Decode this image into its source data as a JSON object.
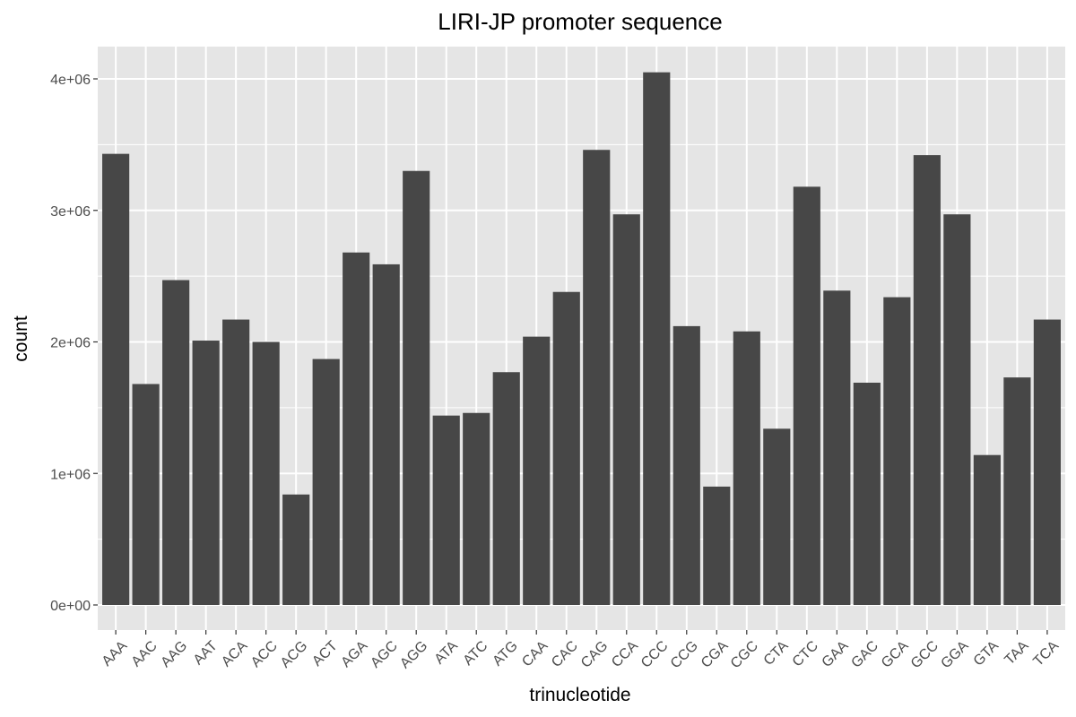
{
  "chart_data": {
    "type": "bar",
    "title": "LIRI-JP promoter sequence",
    "xlabel": "trinucleotide",
    "ylabel": "count",
    "ylim": [
      0,
      4200000
    ],
    "yticks": [
      {
        "value": 0,
        "label": "0e+00"
      },
      {
        "value": 1000000,
        "label": "1e+06"
      },
      {
        "value": 2000000,
        "label": "2e+06"
      },
      {
        "value": 3000000,
        "label": "3e+06"
      },
      {
        "value": 4000000,
        "label": "4e+06"
      }
    ],
    "grid": true,
    "colors": {
      "panel": "#e5e5e5",
      "grid": "#ffffff",
      "bar": "#474747",
      "tick_label": "#4d4d4d"
    },
    "categories": [
      "AAA",
      "AAC",
      "AAG",
      "AAT",
      "ACA",
      "ACC",
      "ACG",
      "ACT",
      "AGA",
      "AGC",
      "AGG",
      "ATA",
      "ATC",
      "ATG",
      "CAA",
      "CAC",
      "CAG",
      "CCA",
      "CCC",
      "CCG",
      "CGA",
      "CGC",
      "CTA",
      "CTC",
      "GAA",
      "GAC",
      "GCA",
      "GCC",
      "GGA",
      "GTA",
      "TAA",
      "TCA"
    ],
    "values": [
      3430000,
      1680000,
      2470000,
      2010000,
      2170000,
      2000000,
      840000,
      1870000,
      2680000,
      2590000,
      3300000,
      1440000,
      1460000,
      1770000,
      2040000,
      2380000,
      3460000,
      2970000,
      4050000,
      2120000,
      900000,
      2080000,
      1340000,
      3180000,
      2390000,
      1690000,
      2340000,
      3420000,
      2970000,
      1140000,
      1730000,
      2170000
    ]
  }
}
